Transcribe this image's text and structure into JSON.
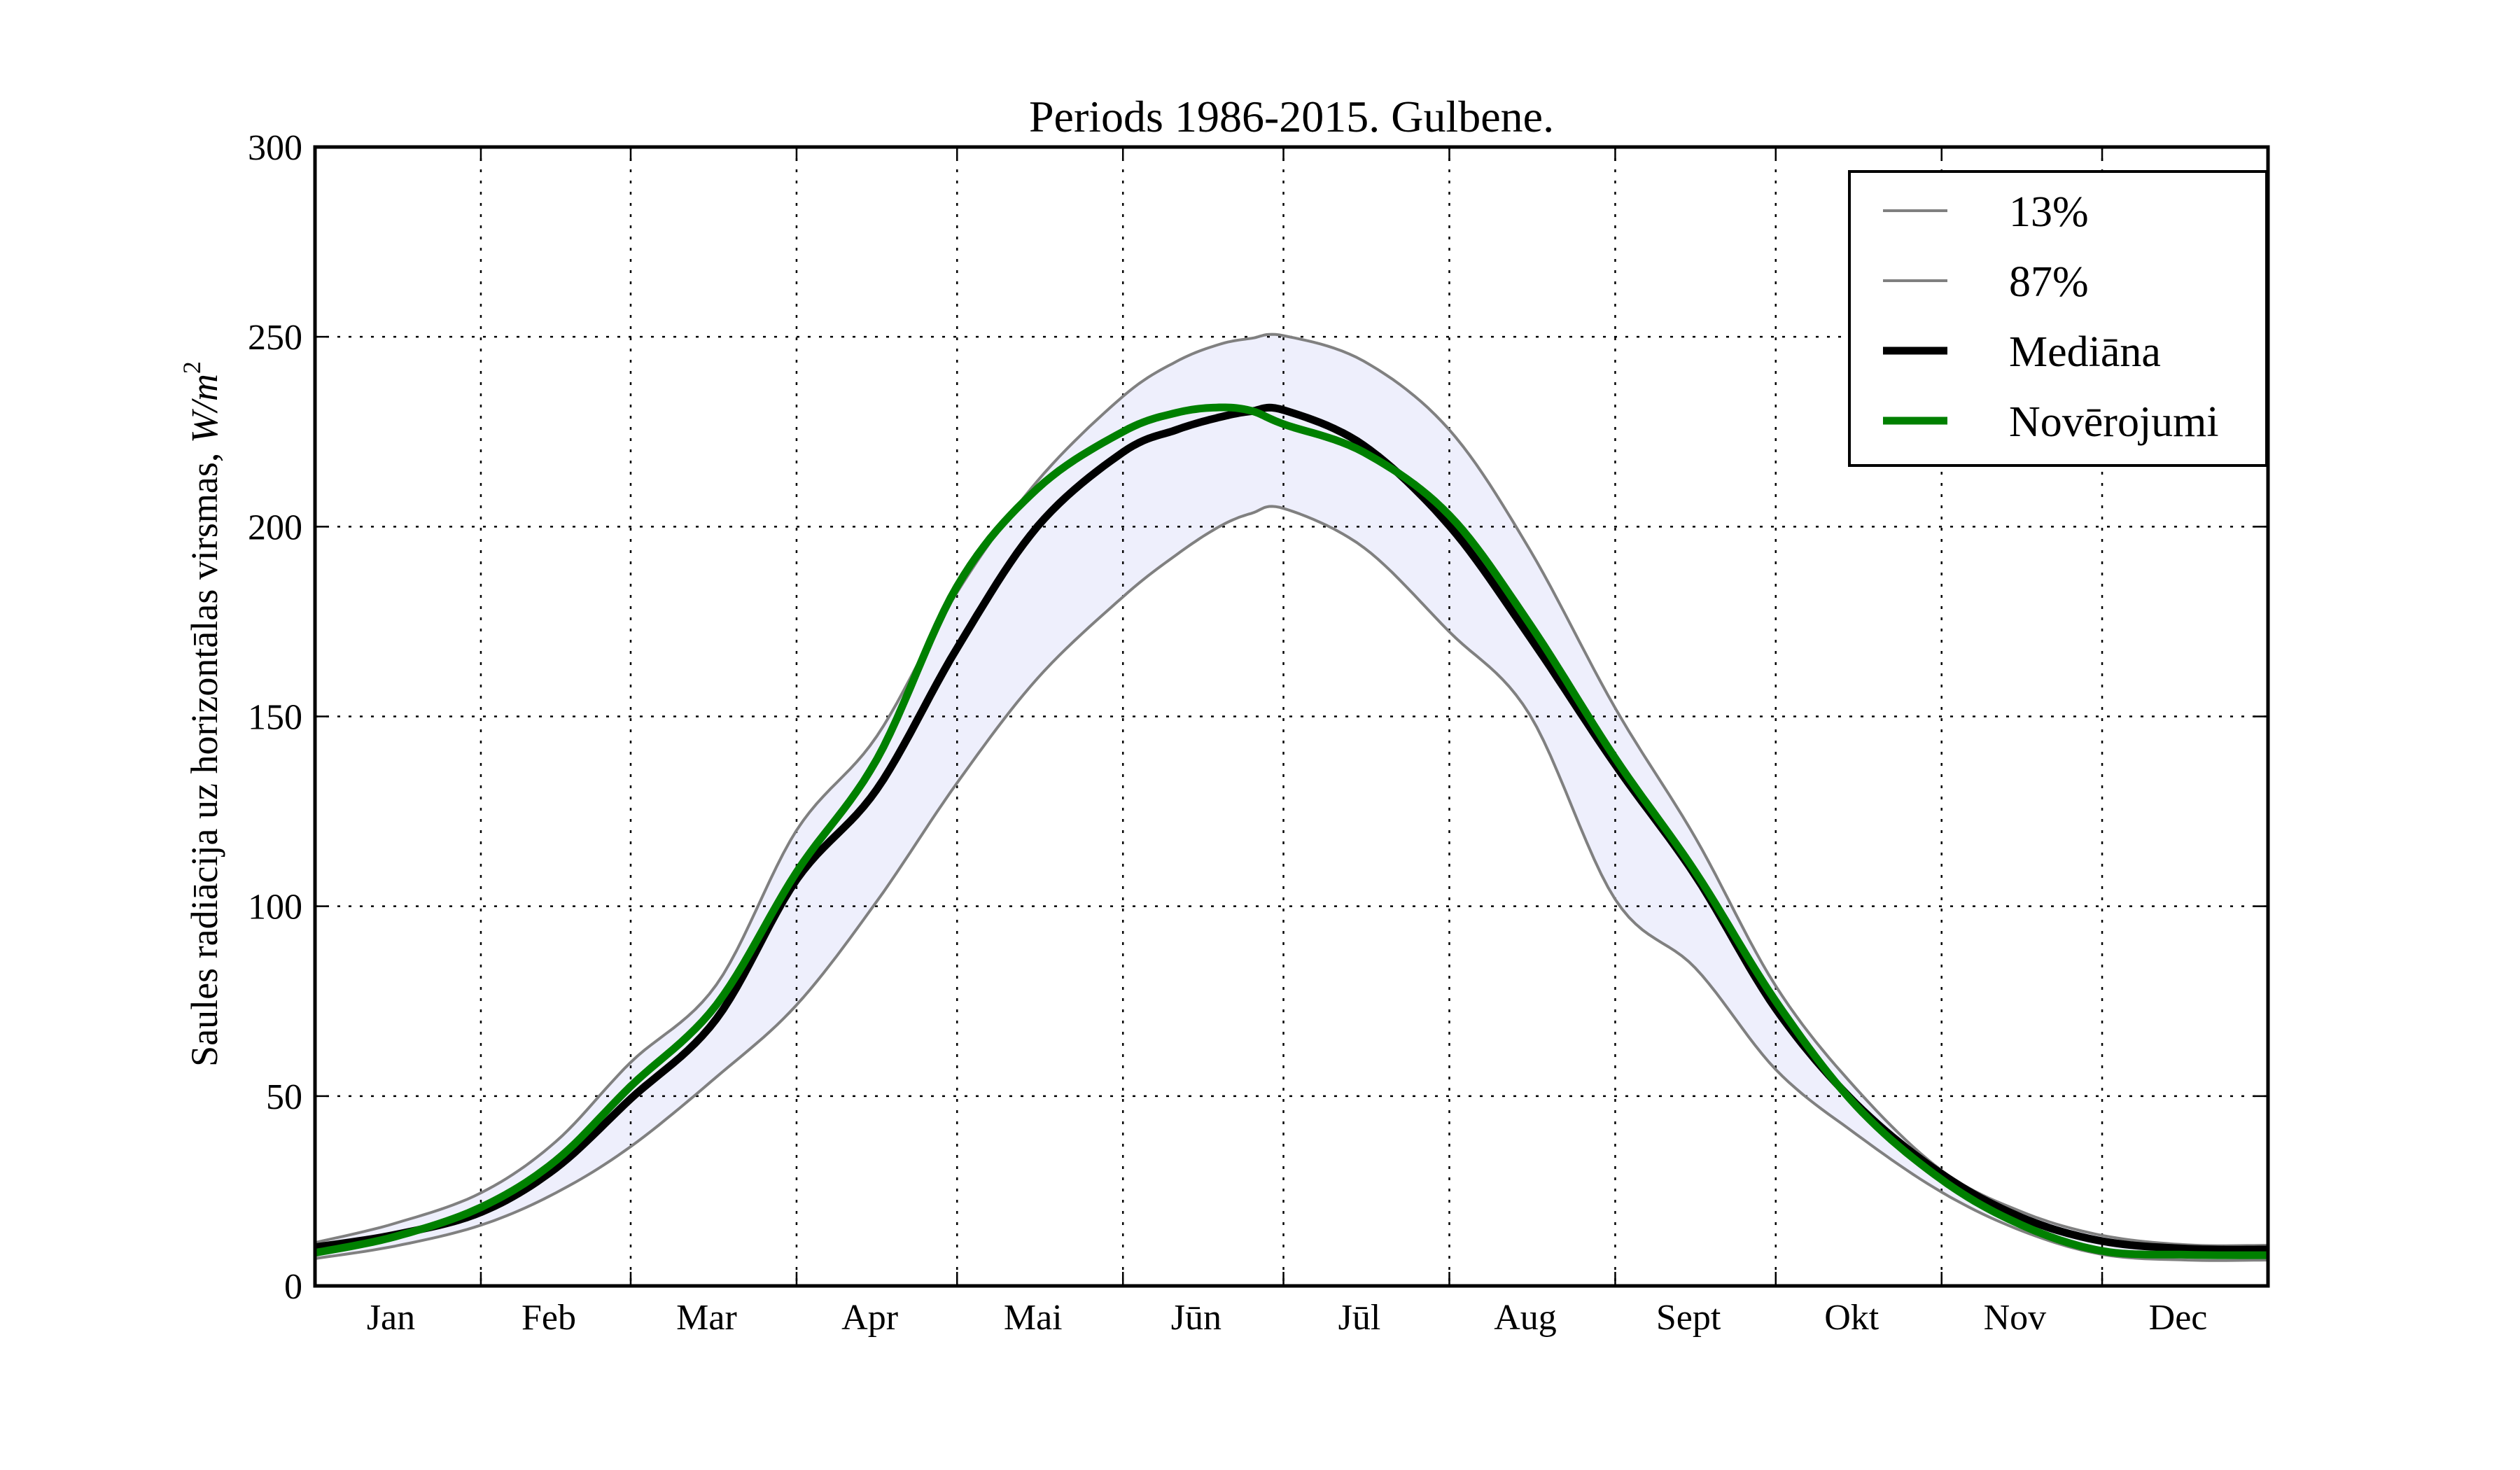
{
  "chart_data": {
    "type": "line",
    "title": "Periods 1986-2015. Gulbene.",
    "xlabel": "",
    "ylabel": "Saules radiācija uz horizontālas virsmas, ",
    "ylabel_unit": "W/m",
    "ylabel_unit_exp": "2",
    "xlim": [
      0,
      365
    ],
    "ylim": [
      0,
      300
    ],
    "grid": true,
    "legend_position": "top-right",
    "yticks": [
      0,
      50,
      100,
      150,
      200,
      250,
      300
    ],
    "ytick_labels": [
      "0",
      "50",
      "100",
      "150",
      "200",
      "250",
      "300"
    ],
    "month_boundaries_day": [
      0,
      31,
      59,
      90,
      120,
      151,
      181,
      212,
      243,
      273,
      304,
      334,
      365
    ],
    "xtick_labels": [
      "Jan",
      "Feb",
      "Mar",
      "Apr",
      "Mai",
      "Jūn",
      "Jūl",
      "Aug",
      "Sept",
      "Okt",
      "Nov",
      "Dec"
    ],
    "x_unit": "day of year",
    "x": [
      0,
      15,
      31,
      45,
      59,
      75,
      90,
      105,
      120,
      135,
      151,
      161,
      169,
      175,
      181,
      196,
      212,
      227,
      243,
      258,
      273,
      288,
      304,
      319,
      334,
      350,
      365
    ],
    "band_fill_color": "#eeeffc",
    "series": [
      {
        "name": "13%",
        "color": "#808080",
        "style": "thin",
        "values": [
          7.2,
          10.5,
          16,
          24.5,
          36.7,
          55,
          74,
          101.3,
          132.5,
          160,
          181.5,
          192.6,
          200,
          203.5,
          204.8,
          194.5,
          172.3,
          150.5,
          101.8,
          83.7,
          57,
          40,
          24.7,
          14.5,
          8.3,
          6.8,
          6.8
        ]
      },
      {
        "name": "87%",
        "color": "#808080",
        "style": "thin",
        "values": [
          11.4,
          16.5,
          24.5,
          38,
          58.9,
          79.3,
          120,
          144.8,
          182.7,
          212,
          234.3,
          243.5,
          248,
          249.6,
          250.3,
          243.6,
          225.5,
          194,
          152.2,
          118,
          79,
          52,
          30.4,
          19.5,
          13.3,
          10.8,
          10.7
        ]
      },
      {
        "name": "Mediāna",
        "color": "#000000",
        "style": "thick",
        "values": [
          10.2,
          13.5,
          19.4,
          31,
          49.3,
          70.3,
          107,
          130.8,
          168,
          200,
          219.6,
          225.5,
          228.8,
          230.4,
          230.7,
          221.4,
          200.2,
          171,
          137.3,
          108,
          73,
          48,
          29.5,
          18,
          11.8,
          9.8,
          9.6
        ]
      },
      {
        "name": "Novērojumi",
        "color": "#008000",
        "style": "thick",
        "values": [
          8.7,
          13,
          20.7,
          33,
          52.6,
          74,
          109,
          138.7,
          184.3,
          210,
          225,
          230,
          231.4,
          230.5,
          227,
          219.6,
          203,
          174.4,
          139,
          109,
          75,
          47.5,
          28,
          16,
          9.2,
          8.2,
          8.1
        ]
      }
    ]
  }
}
